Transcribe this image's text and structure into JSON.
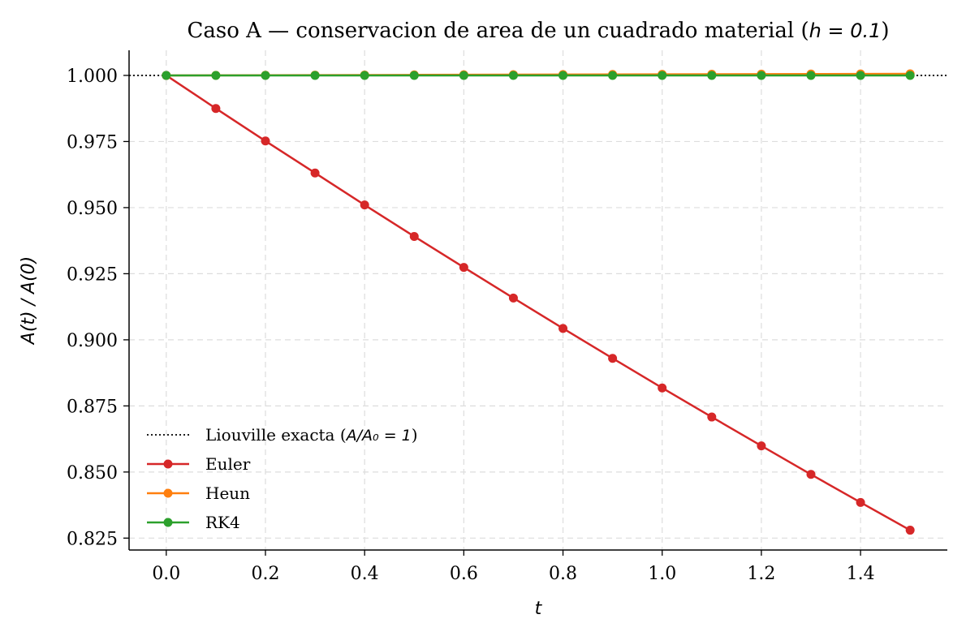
{
  "chart_data": {
    "type": "line",
    "title_prefix": "Caso A — conservacion de area de un cuadrado material (",
    "title_math": "h = 0.1",
    "title_suffix": ")",
    "xlabel": "t",
    "ylabel": "A(t) / A(0)",
    "xlim": [
      -0.075,
      1.575
    ],
    "ylim": [
      0.8205,
      1.0095
    ],
    "x_ticks": [
      0.0,
      0.2,
      0.4,
      0.6,
      0.8,
      1.0,
      1.2,
      1.4
    ],
    "x_tick_labels": [
      "0.0",
      "0.2",
      "0.4",
      "0.6",
      "0.8",
      "1.0",
      "1.2",
      "1.4"
    ],
    "y_ticks": [
      0.825,
      0.85,
      0.875,
      0.9,
      0.925,
      0.95,
      0.975,
      1.0
    ],
    "y_tick_labels": [
      "0.825",
      "0.850",
      "0.875",
      "0.900",
      "0.925",
      "0.950",
      "0.975",
      "1.000"
    ],
    "grid": true,
    "legend_position": "lower-left",
    "reference_line": {
      "name_text": "Liouville exacta (",
      "name_math": "A/A₀ = 1",
      "name_suffix": ")",
      "y": 1.0,
      "color": "#000000",
      "style": "dotted"
    },
    "x": [
      0.0,
      0.1,
      0.2,
      0.3,
      0.4,
      0.5,
      0.6,
      0.7,
      0.8,
      0.9,
      1.0,
      1.1,
      1.2,
      1.3,
      1.4,
      1.5
    ],
    "series": [
      {
        "name": "Euler",
        "color": "#d62728",
        "values": [
          1.0,
          0.9875,
          0.9752,
          0.9631,
          0.951,
          0.9391,
          0.9274,
          0.9158,
          0.9043,
          0.893,
          0.8818,
          0.8708,
          0.8599,
          0.8491,
          0.8385,
          0.828
        ]
      },
      {
        "name": "Heun",
        "color": "#ff7f0e",
        "values": [
          1.0,
          1.00004,
          1.00008,
          1.00012,
          1.00016,
          1.0002,
          1.00024,
          1.00028,
          1.00032,
          1.00036,
          1.0004,
          1.00044,
          1.00048,
          1.00052,
          1.00056,
          1.0006
        ]
      },
      {
        "name": "RK4",
        "color": "#2ca02c",
        "values": [
          1.0,
          1.0,
          1.0,
          1.0,
          1.0,
          1.0,
          1.0,
          1.0,
          1.0,
          1.0,
          1.0,
          1.0,
          1.0,
          1.0,
          1.0,
          1.0
        ]
      }
    ]
  }
}
